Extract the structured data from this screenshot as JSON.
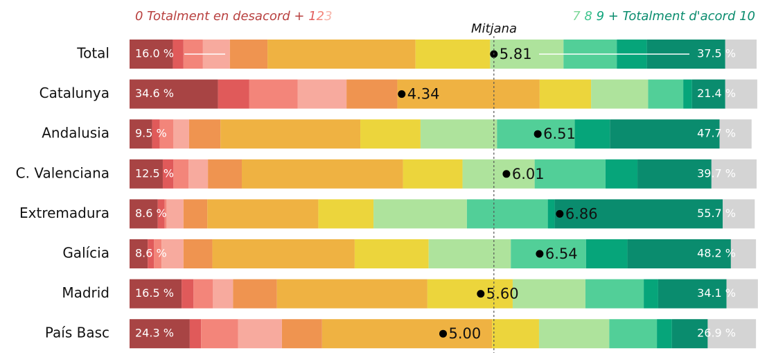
{
  "chart_data": {
    "type": "stacked-bar",
    "orientation": "horizontal",
    "categories": [
      "Total",
      "Catalunya",
      "Andalusia",
      "C. Valenciana",
      "Extremadura",
      "Galícia",
      "Madrid",
      "País Basc"
    ],
    "xlim": [
      0,
      100
    ],
    "legend_low": [
      {
        "text": "0 Totalment en desacord + ",
        "color": "#b8403f"
      },
      {
        "text": "1",
        "color": "#e05a5a"
      },
      {
        "text": "2",
        "color": "#f3857a"
      },
      {
        "text": "3",
        "color": "#f7b3a8"
      }
    ],
    "legend_high": [
      {
        "text": "7",
        "color": "#7fd89a"
      },
      {
        "text": " 8",
        "color": "#3fc48e"
      },
      {
        "text": " 9",
        "color": "#10a57c"
      },
      {
        "text": " + Totalment d'acord 10",
        "color": "#0a8c6e"
      }
    ],
    "series": [
      {
        "color": "#a84444",
        "values": [
          6.9,
          14.1,
          3.6,
          5.3,
          4.5,
          2.9,
          8.3,
          9.6
        ]
      },
      {
        "color": "#e05a5a",
        "values": [
          1.7,
          5.0,
          1.2,
          1.7,
          1.1,
          1.0,
          1.9,
          1.8
        ]
      },
      {
        "color": "#f3857a",
        "values": [
          3.1,
          7.7,
          2.2,
          2.4,
          0.3,
          1.2,
          3.1,
          5.9
        ]
      },
      {
        "color": "#f7aa9e",
        "values": [
          4.3,
          7.8,
          2.5,
          3.1,
          2.7,
          3.5,
          3.2,
          7.0
        ]
      },
      {
        "color": "#ef9450",
        "values": [
          6.0,
          8.1,
          5.0,
          5.4,
          3.8,
          4.6,
          7.0,
          6.4
        ]
      },
      {
        "color": "#efb242",
        "values": [
          23.6,
          22.7,
          22.3,
          25.7,
          17.7,
          22.7,
          24.0,
          27.1
        ]
      },
      {
        "color": "#ecd53c",
        "values": [
          11.9,
          8.2,
          9.6,
          9.5,
          8.8,
          11.8,
          13.6,
          7.5
        ]
      },
      {
        "color": "#aee39c",
        "values": [
          11.7,
          9.1,
          12.2,
          11.5,
          14.9,
          13.1,
          11.6,
          11.2
        ]
      },
      {
        "color": "#52cf98",
        "values": [
          8.5,
          5.6,
          12.4,
          11.3,
          12.9,
          12.0,
          9.3,
          7.6
        ]
      },
      {
        "color": "#06a57a",
        "values": [
          4.8,
          1.4,
          5.6,
          5.1,
          1.1,
          6.6,
          2.3,
          2.4
        ]
      },
      {
        "color": "#0a8c6e",
        "values": [
          12.5,
          5.3,
          17.5,
          11.8,
          26.8,
          16.5,
          10.9,
          5.7
        ]
      },
      {
        "color": "#d4d4d4",
        "values": [
          5.0,
          5.1,
          5.1,
          7.2,
          5.1,
          4.0,
          5.0,
          7.7
        ]
      }
    ],
    "low_totals": {
      "values": [
        16.0,
        34.6,
        9.5,
        12.5,
        8.6,
        8.6,
        16.5,
        24.3
      ],
      "value_labels": [
        "16.0 %",
        "34.6 %",
        "9.5 %",
        "12.5 %",
        "8.6 %",
        "8.6 %",
        "16.5 %",
        "24.3 %"
      ]
    },
    "high_totals": {
      "values": [
        37.5,
        21.4,
        47.7,
        39.7,
        55.7,
        48.2,
        34.1,
        26.9
      ],
      "value_labels": [
        "37.5 %",
        "21.4 %",
        "47.7 %",
        "39.7 %",
        "55.7 %",
        "48.2 %",
        "34.1 %",
        "26.9 %"
      ]
    },
    "means": {
      "label": "Mitjana",
      "xlim": [
        0,
        10
      ],
      "values": [
        5.81,
        4.34,
        6.51,
        6.01,
        6.86,
        6.54,
        5.6,
        5.0
      ],
      "value_labels": [
        "5.81",
        "4.34",
        "6.51",
        "6.01",
        "6.86",
        "6.54",
        "5.60",
        "5.00"
      ]
    }
  }
}
